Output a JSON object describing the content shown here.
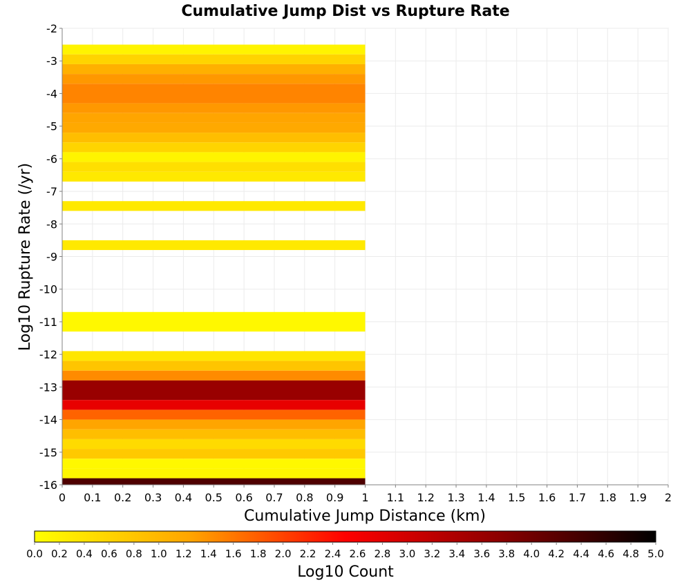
{
  "chart_data": {
    "type": "heatmap",
    "title": "Cumulative Jump Dist vs Rupture Rate",
    "xlabel": "Cumulative Jump Distance (km)",
    "ylabel": "Log10 Rupture Rate (/yr)",
    "xlim": [
      0,
      2
    ],
    "ylim": [
      -16,
      -2
    ],
    "x_ticks": [
      "0",
      "0.1",
      "0.2",
      "0.3",
      "0.4",
      "0.5",
      "0.6",
      "0.7",
      "0.8",
      "0.9",
      "1",
      "1.1",
      "1.2",
      "1.3",
      "1.4",
      "1.5",
      "1.6",
      "1.7",
      "1.8",
      "1.9",
      "2"
    ],
    "y_ticks": [
      "-2",
      "-3",
      "-4",
      "-5",
      "-6",
      "-7",
      "-8",
      "-9",
      "-10",
      "-11",
      "-12",
      "-13",
      "-14",
      "-15",
      "-16"
    ],
    "grid": true,
    "cells": [
      {
        "x0": 0,
        "x1": 1,
        "y0": -2.8,
        "y1": -2.5,
        "value": 0.15
      },
      {
        "x0": 0,
        "x1": 1,
        "y0": -3.1,
        "y1": -2.8,
        "value": 0.6
      },
      {
        "x0": 0,
        "x1": 1,
        "y0": -3.4,
        "y1": -3.1,
        "value": 1.1
      },
      {
        "x0": 0,
        "x1": 1,
        "y0": -3.7,
        "y1": -3.4,
        "value": 1.35
      },
      {
        "x0": 0,
        "x1": 1,
        "y0": -4.3,
        "y1": -3.7,
        "value": 1.5
      },
      {
        "x0": 0,
        "x1": 1,
        "y0": -4.6,
        "y1": -4.3,
        "value": 1.35
      },
      {
        "x0": 0,
        "x1": 1,
        "y0": -4.9,
        "y1": -4.6,
        "value": 1.25
      },
      {
        "x0": 0,
        "x1": 1,
        "y0": -5.2,
        "y1": -4.9,
        "value": 1.2
      },
      {
        "x0": 0,
        "x1": 1,
        "y0": -5.5,
        "y1": -5.2,
        "value": 0.9
      },
      {
        "x0": 0,
        "x1": 1,
        "y0": -5.8,
        "y1": -5.5,
        "value": 0.6
      },
      {
        "x0": 0,
        "x1": 1,
        "y0": -6.1,
        "y1": -5.8,
        "value": 0.15
      },
      {
        "x0": 0,
        "x1": 1,
        "y0": -6.4,
        "y1": -6.1,
        "value": 0.45
      },
      {
        "x0": 0,
        "x1": 1,
        "y0": -6.7,
        "y1": -6.4,
        "value": 0.3
      },
      {
        "x0": 0,
        "x1": 1,
        "y0": -7.6,
        "y1": -7.3,
        "value": 0.3
      },
      {
        "x0": 0,
        "x1": 1,
        "y0": -8.8,
        "y1": -8.5,
        "value": 0.3
      },
      {
        "x0": 0,
        "x1": 1,
        "y0": -11.3,
        "y1": -10.7,
        "value": 0.1
      },
      {
        "x0": 0,
        "x1": 1,
        "y0": -12.2,
        "y1": -11.9,
        "value": 0.35
      },
      {
        "x0": 0,
        "x1": 1,
        "y0": -12.5,
        "y1": -12.2,
        "value": 0.8
      },
      {
        "x0": 0,
        "x1": 1,
        "y0": -12.8,
        "y1": -12.5,
        "value": 1.45
      },
      {
        "x0": 0,
        "x1": 1,
        "y0": -13.4,
        "y1": -12.8,
        "value": 3.6
      },
      {
        "x0": 0,
        "x1": 1,
        "y0": -13.7,
        "y1": -13.4,
        "value": 2.75
      },
      {
        "x0": 0,
        "x1": 1,
        "y0": -14.0,
        "y1": -13.7,
        "value": 1.75
      },
      {
        "x0": 0,
        "x1": 1,
        "y0": -14.3,
        "y1": -14.0,
        "value": 1.25
      },
      {
        "x0": 0,
        "x1": 1,
        "y0": -14.6,
        "y1": -14.3,
        "value": 0.9
      },
      {
        "x0": 0,
        "x1": 1,
        "y0": -14.9,
        "y1": -14.6,
        "value": 0.5
      },
      {
        "x0": 0,
        "x1": 1,
        "y0": -15.2,
        "y1": -14.9,
        "value": 0.75
      },
      {
        "x0": 0,
        "x1": 1,
        "y0": -15.5,
        "y1": -15.2,
        "value": 0.1
      },
      {
        "x0": 0,
        "x1": 1,
        "y0": -15.8,
        "y1": -15.5,
        "value": 0.12
      },
      {
        "x0": 0,
        "x1": 1,
        "y0": -16.0,
        "y1": -15.8,
        "value": 4.3
      }
    ],
    "colorbar": {
      "label": "Log10 Count",
      "range": [
        0,
        5
      ],
      "ticks": [
        "0.0",
        "0.2",
        "0.4",
        "0.6",
        "0.8",
        "1.0",
        "1.2",
        "1.4",
        "1.6",
        "1.8",
        "2.0",
        "2.2",
        "2.4",
        "2.6",
        "2.8",
        "3.0",
        "3.2",
        "3.4",
        "3.6",
        "3.8",
        "4.0",
        "4.2",
        "4.4",
        "4.6",
        "4.8",
        "5.0"
      ],
      "colors": [
        "#ffff00",
        "#ffa500",
        "#ff0000",
        "#8b0000",
        "#000000"
      ]
    }
  }
}
